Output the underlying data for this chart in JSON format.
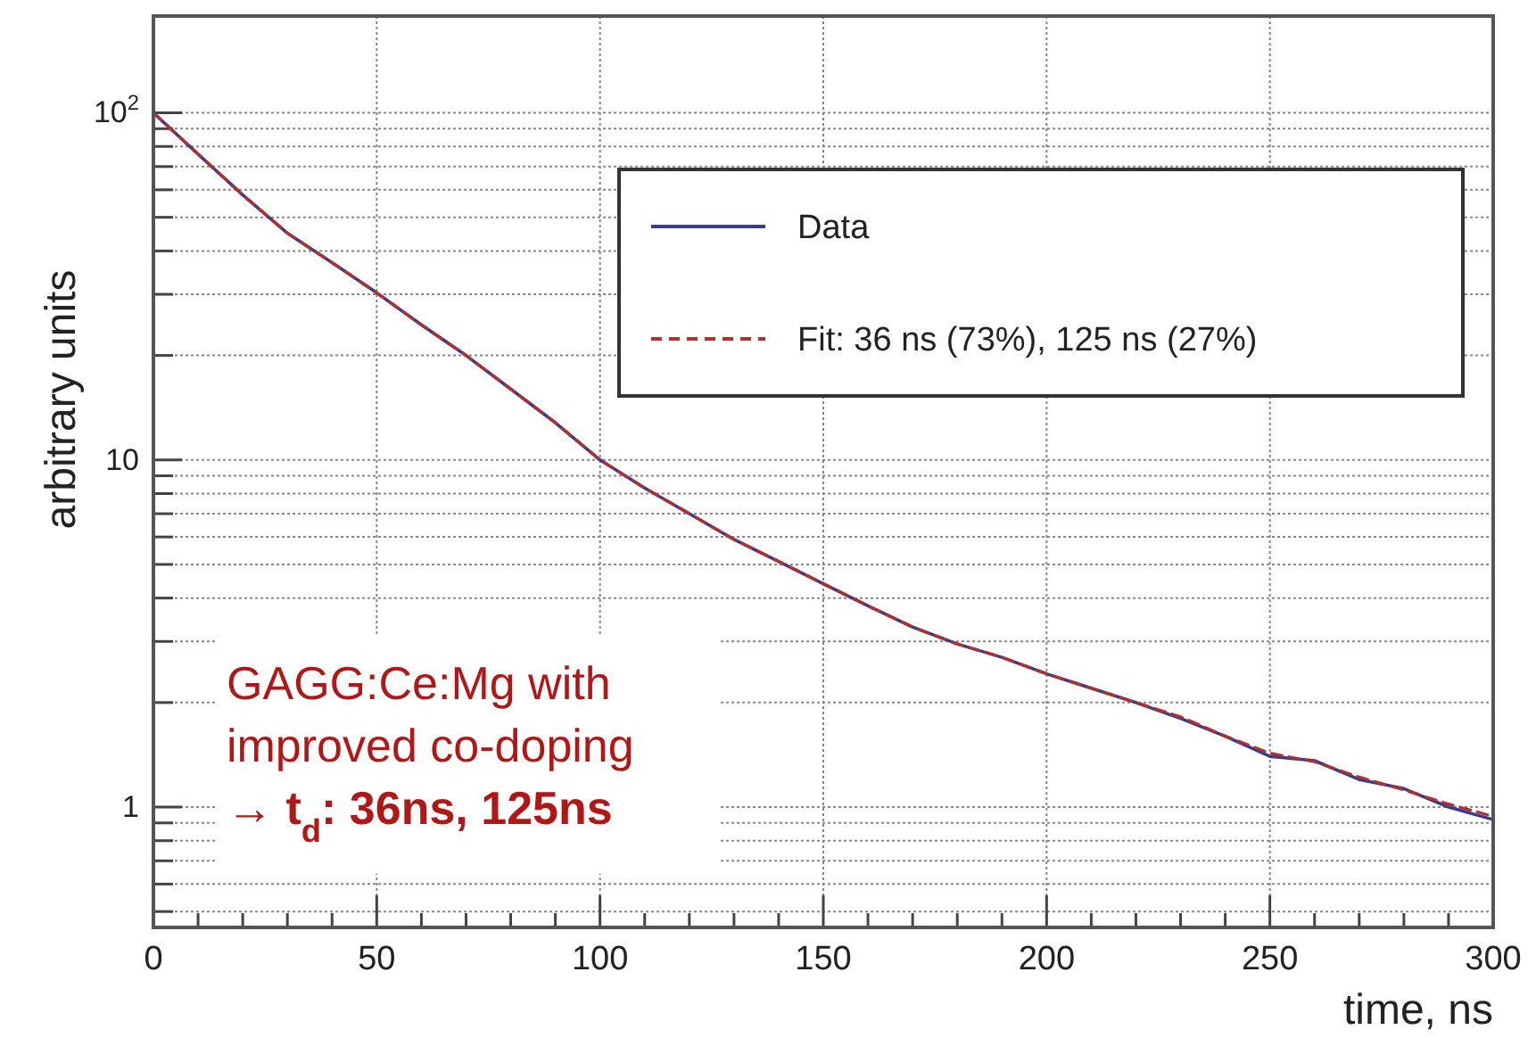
{
  "chart_data": {
    "type": "line",
    "xlabel": "time, ns",
    "ylabel": "arbitrary units",
    "log": "y",
    "grid": true,
    "legend": "top right",
    "line_style": "solid",
    "marker": "none",
    "x": [
      0,
      10,
      20,
      30,
      40,
      50,
      60,
      70,
      80,
      90,
      100,
      110,
      120,
      130,
      140,
      150,
      160,
      170,
      180,
      190,
      200,
      210,
      220,
      230,
      240,
      250,
      260,
      270,
      280,
      290,
      300
    ],
    "series": [
      {
        "name": "Data",
        "color": "#3b3b8c",
        "values": [
          100,
          76,
          58,
          45,
          37,
          30.3,
          24.5,
          20,
          16,
          12.8,
          10,
          8.3,
          7,
          5.9,
          5.1,
          4.4,
          3.8,
          3.3,
          2.95,
          2.7,
          2.42,
          2.2,
          2.0,
          1.8,
          1.6,
          1.4,
          1.36,
          1.2,
          1.13,
          1.0,
          0.92
        ]
      },
      {
        "name": "Fit: 36 ns (73%), 125 ns (27%)",
        "color": "#b03030",
        "line_style": "dashed",
        "values": [
          100,
          76,
          58,
          45,
          37,
          30.3,
          24.5,
          20,
          16,
          12.8,
          10,
          8.3,
          7,
          5.9,
          5.1,
          4.4,
          3.8,
          3.3,
          2.95,
          2.7,
          2.42,
          2.2,
          2.0,
          1.82,
          1.6,
          1.43,
          1.35,
          1.22,
          1.12,
          1.02,
          0.94
        ]
      }
    ],
    "xlim": [
      0,
      300
    ],
    "xticks": [
      0,
      {
        "value": 10,
        "label": null
      },
      {
        "value": 20,
        "label": null
      },
      {
        "value": 30,
        "label": null
      },
      {
        "value": 40,
        "label": null
      },
      50,
      {
        "value": 60,
        "label": null
      },
      {
        "value": 70,
        "label": null
      },
      {
        "value": 80,
        "label": null
      },
      {
        "value": 90,
        "label": null
      },
      100,
      {
        "value": 110,
        "label": null
      },
      {
        "value": 120,
        "label": null
      },
      {
        "value": 130,
        "label": null
      },
      {
        "value": 140,
        "label": null
      },
      150,
      {
        "value": 160,
        "label": null
      },
      {
        "value": 170,
        "label": null
      },
      {
        "value": 180,
        "label": null
      },
      {
        "value": 190,
        "label": null
      },
      200,
      {
        "value": 210,
        "label": null
      },
      {
        "value": 220,
        "label": null
      },
      {
        "value": 230,
        "label": null
      },
      {
        "value": 240,
        "label": null
      },
      250,
      {
        "value": 260,
        "label": null
      },
      {
        "value": 270,
        "label": null
      },
      {
        "value": 280,
        "label": null
      },
      {
        "value": 290,
        "label": null
      },
      300
    ],
    "ylim": [
      0.45,
      190
    ],
    "yticks": [
      {
        "value": 0.5,
        "label": null
      },
      {
        "value": 0.6,
        "label": null
      },
      {
        "value": 0.7,
        "label": null
      },
      {
        "value": 0.8,
        "label": null
      },
      {
        "value": 0.9,
        "label": null
      },
      1,
      {
        "value": 2,
        "label": null
      },
      {
        "value": 3,
        "label": null
      },
      {
        "value": 4,
        "label": null
      },
      {
        "value": 5,
        "label": null
      },
      {
        "value": 6,
        "label": null
      },
      {
        "value": 7,
        "label": null
      },
      {
        "value": 8,
        "label": null
      },
      {
        "value": 9,
        "label": null
      },
      10,
      {
        "value": 20,
        "label": null
      },
      {
        "value": 30,
        "label": null
      },
      {
        "value": 40,
        "label": null
      },
      {
        "value": 50,
        "label": null
      },
      {
        "value": 60,
        "label": null
      },
      {
        "value": 70,
        "label": null
      },
      {
        "value": 80,
        "label": null
      },
      {
        "value": 90,
        "label": null
      },
      {
        "value": 100,
        "label": "10$^{2}$"
      }
    ],
    "annotations": [
      "GAGG:Ce:Mg with",
      "improved co-doping",
      "→ t$_{d}$: 36ns, 125ns"
    ]
  }
}
